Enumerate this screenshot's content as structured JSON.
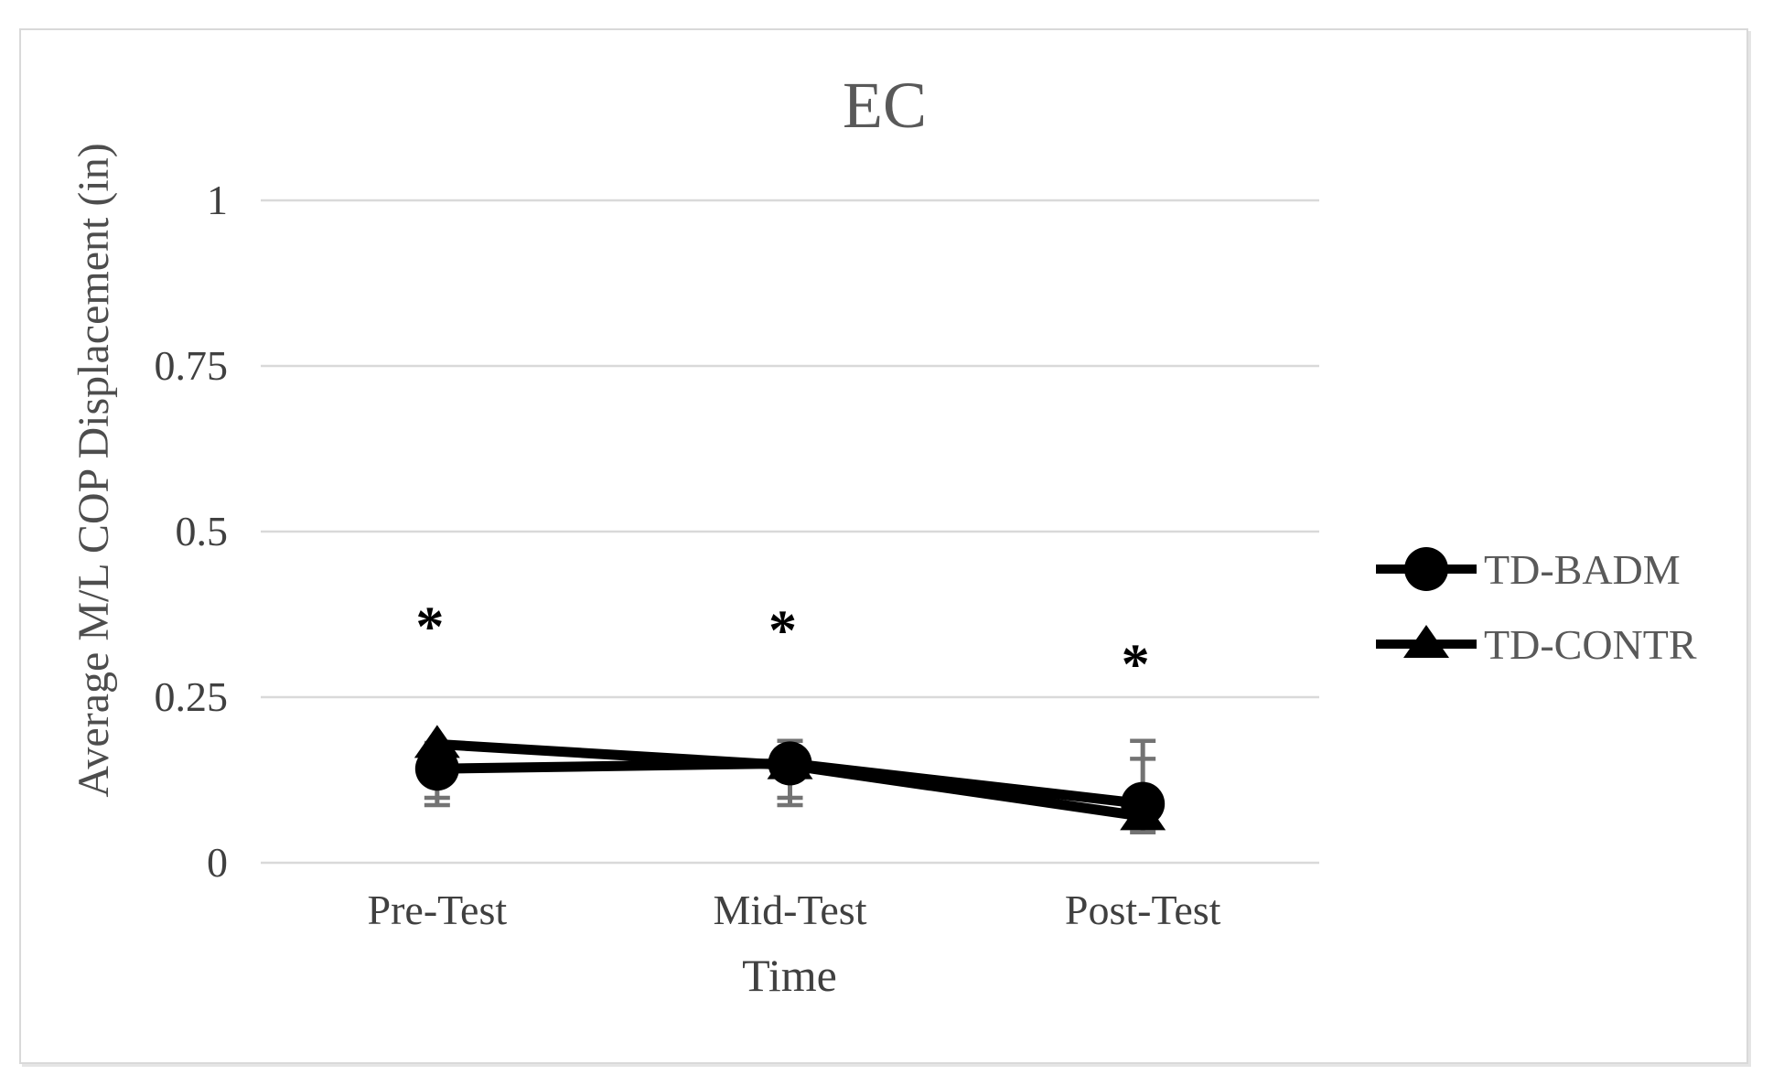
{
  "chart_data": {
    "type": "line",
    "title": "EC",
    "xlabel": "Time",
    "ylabel": "Average M/L COP Displacement (in)",
    "categories": [
      "Pre-Test",
      "Mid-Test",
      "Post-Test"
    ],
    "ylim": [
      0,
      1
    ],
    "yticks": [
      {
        "value": 0,
        "label": "0"
      },
      {
        "value": 0.25,
        "label": "0.25"
      },
      {
        "value": 0.5,
        "label": "0.5"
      },
      {
        "value": 0.75,
        "label": "0.75"
      },
      {
        "value": 1,
        "label": "1"
      }
    ],
    "grid": "horizontal",
    "legend_position": "right",
    "series": [
      {
        "name": "TD-BADM",
        "marker": "circle",
        "values": [
          0.142,
          0.15,
          0.089
        ]
      },
      {
        "name": "TD-CONTR",
        "marker": "triangle",
        "values": [
          0.179,
          0.147,
          0.07
        ]
      }
    ],
    "error_bars": [
      {
        "category": "Pre-Test",
        "top": 0.181,
        "bottom": 0.087,
        "caps": [
          0.181,
          0.098,
          0.087
        ]
      },
      {
        "category": "Mid-Test",
        "top": 0.184,
        "bottom": 0.087,
        "caps": [
          0.184,
          0.098,
          0.087
        ]
      },
      {
        "category": "Post-Test",
        "top": 0.184,
        "bottom": 0.046,
        "caps": [
          0.184,
          0.157,
          0.046
        ]
      }
    ],
    "annotations": [
      {
        "text": "*",
        "category": "Pre-Test",
        "value": 0.365
      },
      {
        "text": "*",
        "category": "Mid-Test",
        "value": 0.36
      },
      {
        "text": "*",
        "category": "Post-Test",
        "value": 0.309
      }
    ]
  },
  "colors": {
    "series_color": "#000000",
    "error_bar": "#737373",
    "gridline": "#d9d9d9",
    "title_text": "#595959",
    "axis_title_text": "#4d4d4d",
    "tick_text": "#404040",
    "legend_text": "#595959",
    "annotation": "#000000",
    "background": "#ffffff",
    "frame_border": "#d9d9d9"
  }
}
